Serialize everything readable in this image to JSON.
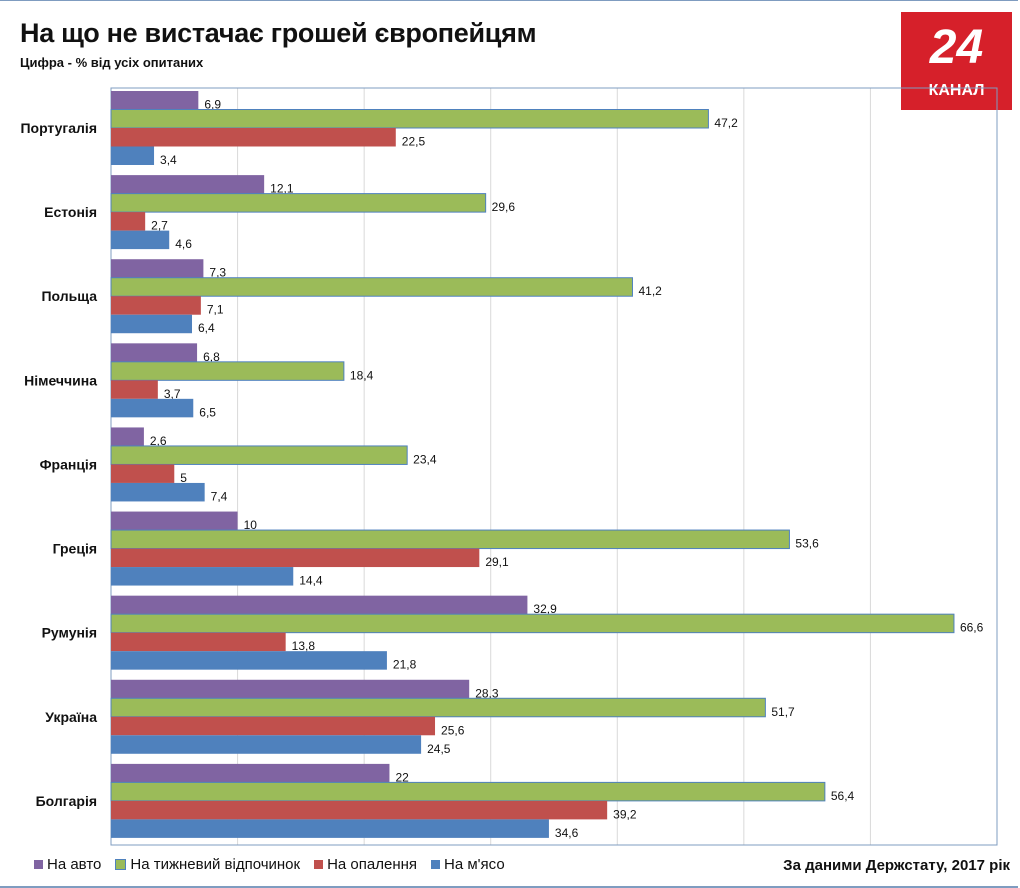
{
  "chart_data": {
    "type": "bar",
    "orientation": "horizontal",
    "title": "На що не вистачає грошей європейцям",
    "subtitle": "Цифра - % від усіх опитаних",
    "categories": [
      "Португалія",
      "Естонія",
      "Польща",
      "Німеччина",
      "Франція",
      "Греція",
      "Румунія",
      "Україна",
      "Болгарія"
    ],
    "series": [
      {
        "name": "На авто",
        "color": "#8064a2",
        "values": [
          6.9,
          12.1,
          7.3,
          6.8,
          2.6,
          10,
          32.9,
          28.3,
          22
        ],
        "labels": [
          "6,9",
          "12,1",
          "7,3",
          "6,8",
          "2,6",
          "10",
          "32,9",
          "28,3",
          "22"
        ]
      },
      {
        "name": "На тижневий відпочинок",
        "color": "#9bbb59",
        "values": [
          47.2,
          29.6,
          41.2,
          18.4,
          23.4,
          53.6,
          66.6,
          51.7,
          56.4
        ],
        "labels": [
          "47,2",
          "29,6",
          "41,2",
          "18,4",
          "23,4",
          "53,6",
          "66,6",
          "51,7",
          "56,4"
        ]
      },
      {
        "name": "На опалення",
        "color": "#c0504d",
        "values": [
          22.5,
          2.7,
          7.1,
          3.7,
          5,
          29.1,
          13.8,
          25.6,
          39.2
        ],
        "labels": [
          "22,5",
          "2,7",
          "7,1",
          "3,7",
          "5",
          "29,1",
          "13,8",
          "25,6",
          "39,2"
        ]
      },
      {
        "name": "На м'ясо",
        "color": "#4f81bd",
        "values": [
          3.4,
          4.6,
          6.4,
          6.5,
          7.4,
          14.4,
          21.8,
          24.5,
          34.6
        ],
        "labels": [
          "3,4",
          "4,6",
          "6,4",
          "6,5",
          "7,4",
          "14,4",
          "21,8",
          "24,5",
          "34,6"
        ]
      }
    ],
    "xlim": [
      0,
      70
    ],
    "grid": true,
    "legend": "bottom-left",
    "source": "За даними Держстату, 2017 рік"
  },
  "logo": {
    "number": "24",
    "text": "КАНАЛ"
  }
}
